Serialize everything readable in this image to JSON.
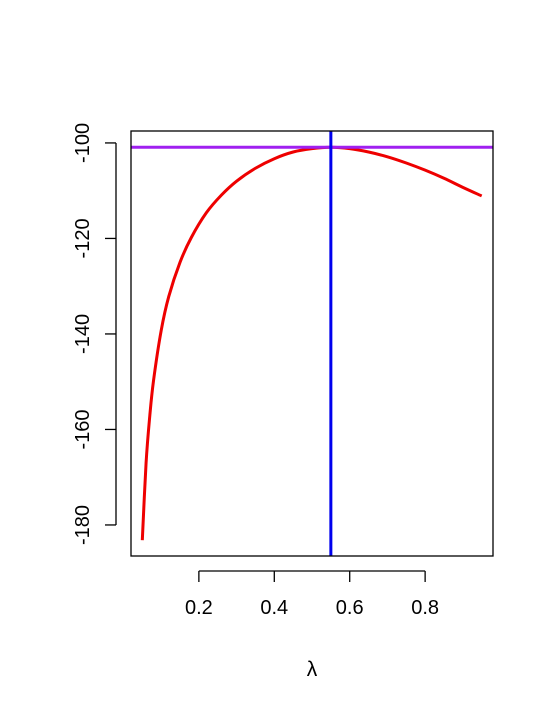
{
  "chart_data": {
    "type": "line",
    "title": "",
    "xlabel": "λ",
    "ylabel": "",
    "xlim": [
      0.02,
      0.98
    ],
    "ylim": [
      -186.5,
      -97.5
    ],
    "x_ticks": [
      0.2,
      0.4,
      0.6,
      0.8
    ],
    "x_tick_labels": [
      "0.2",
      "0.4",
      "0.6",
      "0.8"
    ],
    "y_ticks": [
      -180,
      -160,
      -140,
      -120,
      -100
    ],
    "y_tick_labels": [
      "-180",
      "-160",
      "-140",
      "-120",
      "-100"
    ],
    "grid": false,
    "legend": "none",
    "series": [
      {
        "color": "#ee0000",
        "x": [
          0.05,
          0.06,
          0.07,
          0.08,
          0.1,
          0.12,
          0.15,
          0.18,
          0.22,
          0.26,
          0.3,
          0.35,
          0.4,
          0.45,
          0.5,
          0.55,
          0.6,
          0.65,
          0.7,
          0.75,
          0.8,
          0.85,
          0.9,
          0.95
        ],
        "y": [
          -183.2,
          -167.0,
          -157.0,
          -149.6,
          -139.3,
          -132.2,
          -125.0,
          -119.8,
          -114.6,
          -110.9,
          -108.0,
          -105.3,
          -103.3,
          -101.9,
          -101.2,
          -100.9,
          -101.2,
          -101.9,
          -102.9,
          -104.2,
          -105.7,
          -107.4,
          -109.3,
          -111.1
        ]
      }
    ],
    "hlines": [
      {
        "y": -100.9,
        "color": "#a020f0"
      }
    ],
    "vlines": [
      {
        "x": 0.55,
        "color": "#0000ee"
      }
    ]
  }
}
